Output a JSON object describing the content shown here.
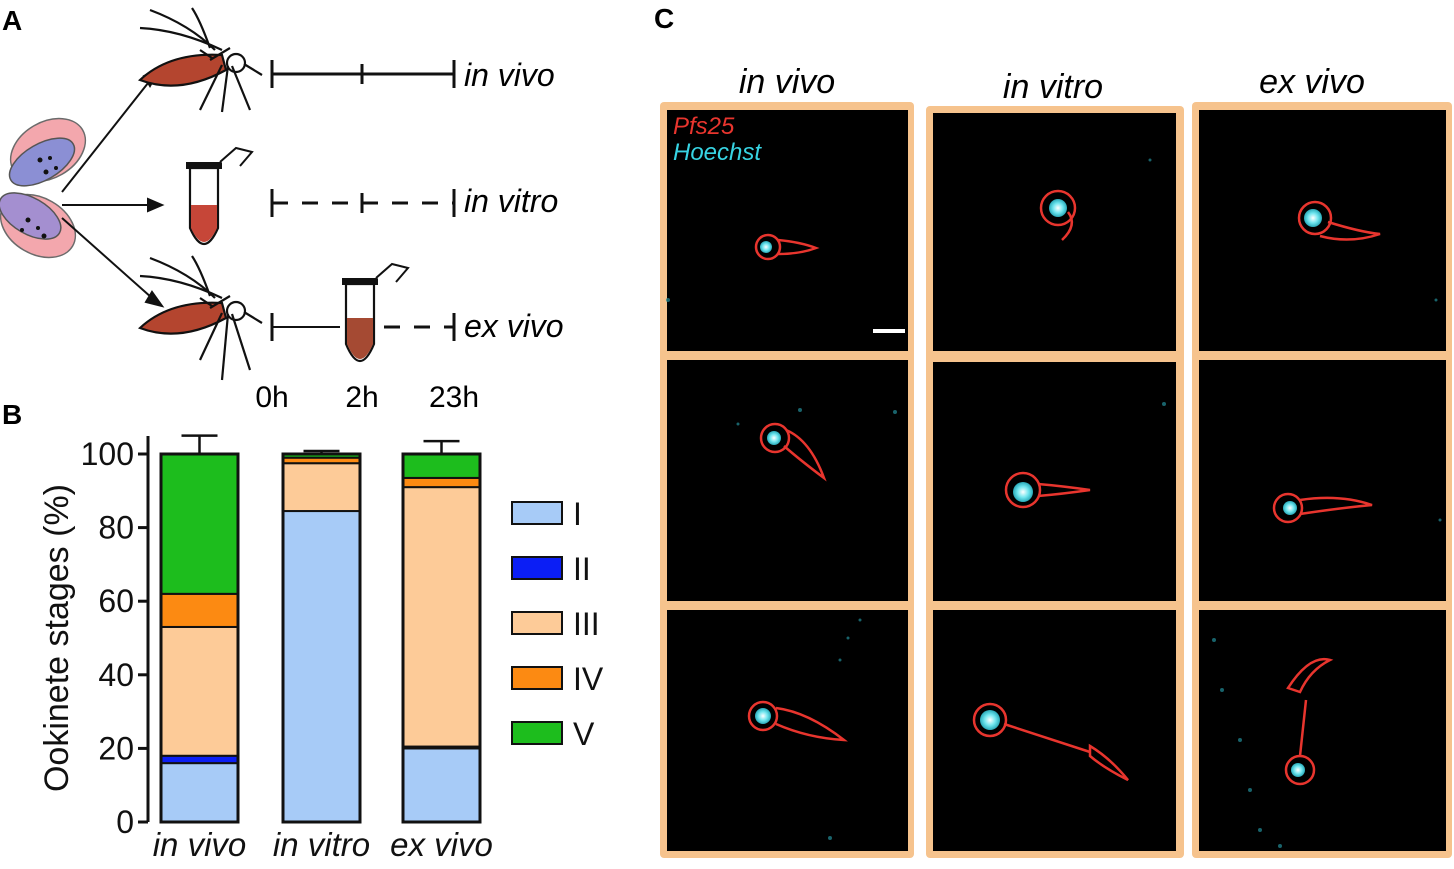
{
  "panels": {
    "a": "A",
    "b": "B",
    "c": "C"
  },
  "panel_a": {
    "conditions": [
      "in vivo",
      "in vitro",
      "ex vivo"
    ],
    "times": [
      "0h",
      "2h",
      "23h"
    ]
  },
  "panel_c": {
    "columns": [
      "in vivo",
      "in vitro",
      "ex vivo"
    ],
    "stain_1": "Pfs25",
    "stain_2": "Hoechst",
    "colors": {
      "frame": "#f6c38d",
      "stain_1": "#e8352e",
      "stain_2": "#37d4e3",
      "background": "#000000"
    }
  },
  "chart_data": {
    "type": "bar",
    "stacked": true,
    "categories": [
      "in vivo",
      "in vitro",
      "ex vivo"
    ],
    "ylabel": "Ookinete stages (%)",
    "ylim": [
      0,
      100
    ],
    "yticks": [
      0,
      20,
      40,
      60,
      80,
      100
    ],
    "legend_placement": "right",
    "series": [
      {
        "name": "I",
        "color": "#a7cbf7",
        "values": [
          16,
          84.5,
          20
        ],
        "errors": [
          1.0,
          1.0,
          0.8
        ]
      },
      {
        "name": "II",
        "color": "#0b1ef5",
        "values": [
          2,
          0,
          0.5
        ],
        "errors": [
          0.7,
          0,
          0.3
        ]
      },
      {
        "name": "III",
        "color": "#fdcb98",
        "values": [
          35,
          13,
          70.5
        ],
        "errors": [
          3.5,
          2.0,
          0.8
        ]
      },
      {
        "name": "IV",
        "color": "#fc8a12",
        "values": [
          9,
          1.5,
          2.5
        ],
        "errors": [
          1.0,
          0.8,
          1.0
        ]
      },
      {
        "name": "V",
        "color": "#1dbd1d",
        "values": [
          38,
          1,
          6.5
        ],
        "errors": [
          5.0,
          0.8,
          3.5
        ]
      }
    ]
  }
}
